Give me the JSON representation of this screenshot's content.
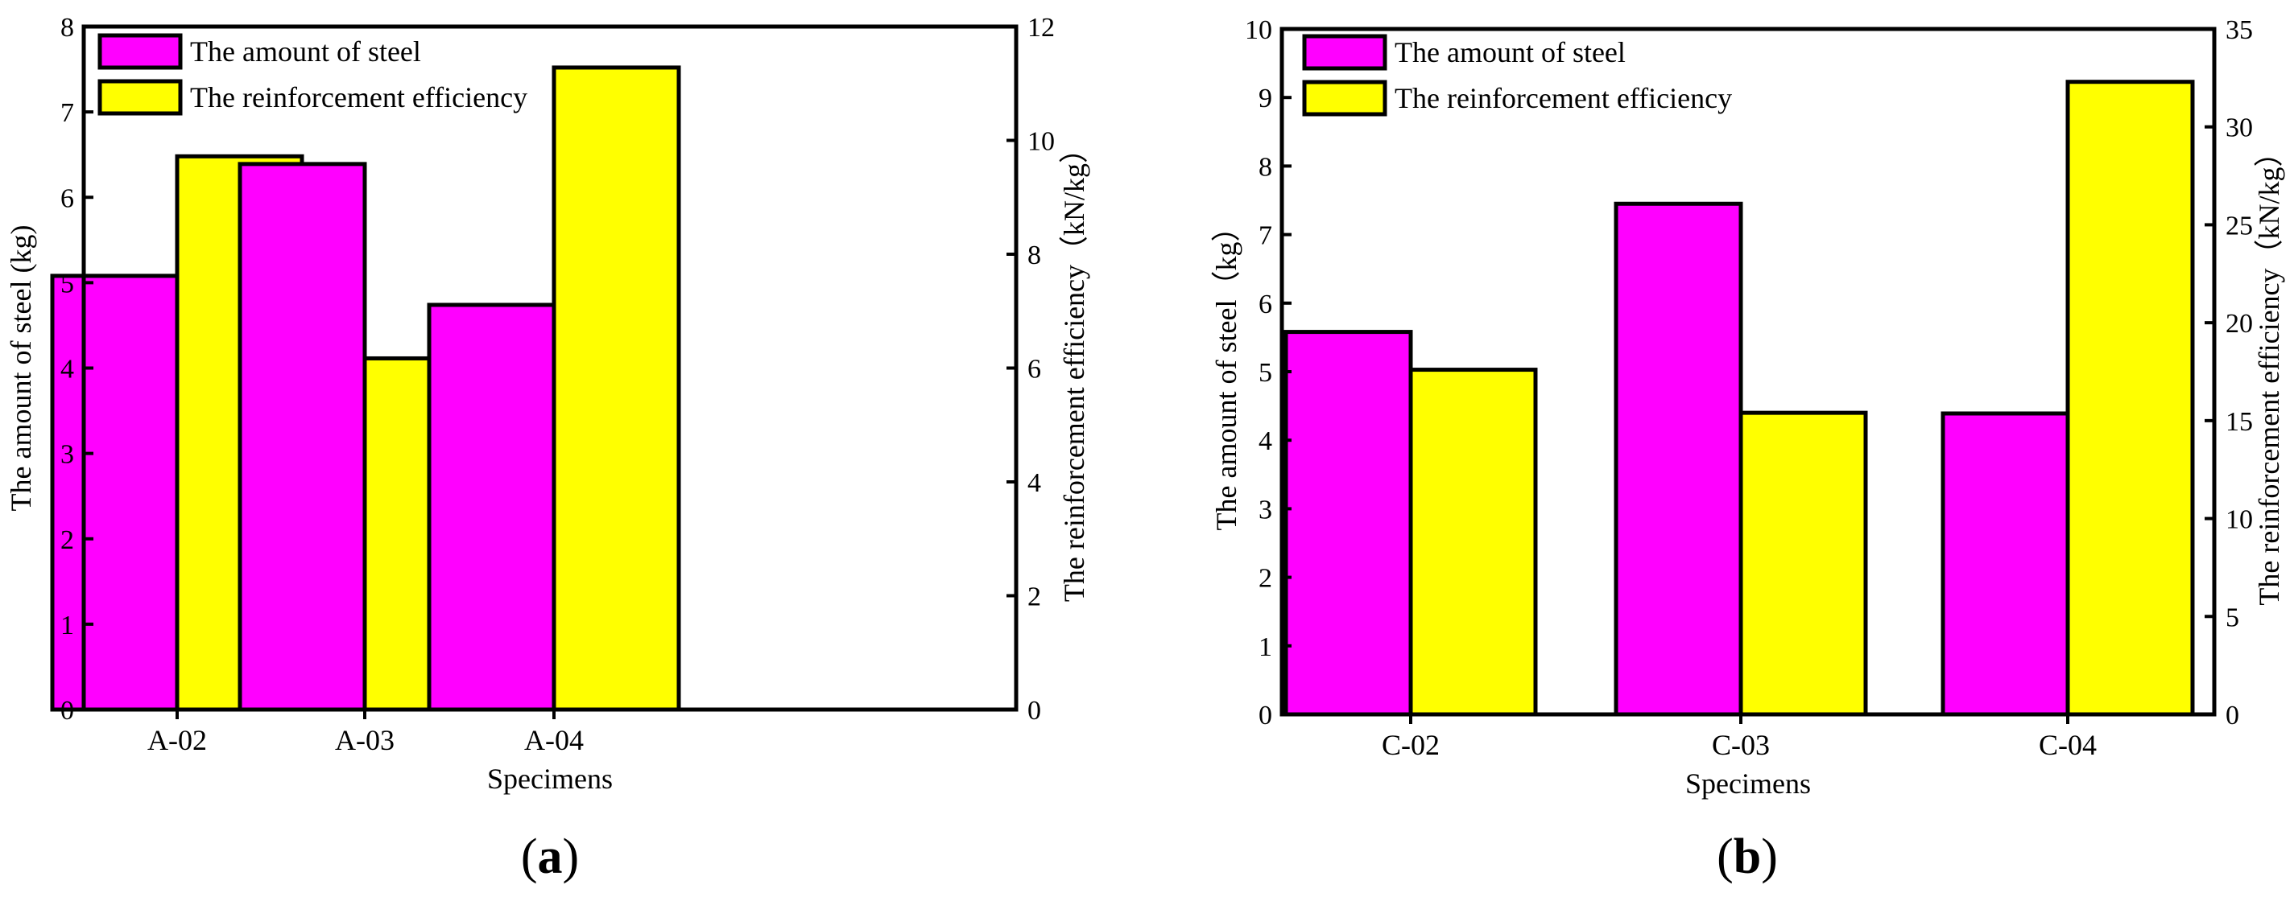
{
  "colors": {
    "steel": "#ff00ff",
    "efficiency": "#ffff00",
    "stroke": "#000000"
  },
  "chart_data": [
    {
      "type": "bar",
      "panel_label": {
        "open": "(",
        "letter": "a",
        "close": ")"
      },
      "categories": [
        "A-02",
        "A-03",
        "A-04"
      ],
      "xlabel": "Specimens",
      "ylabel_left": "The amount of steel (kg)",
      "ylabel_right": "The reinforcement efficiency（kN/kg）",
      "ylim_left": [
        0,
        8
      ],
      "ylim_right": [
        0,
        12
      ],
      "yticks_left": [
        "0",
        "1",
        "2",
        "3",
        "4",
        "5",
        "6",
        "7",
        "8"
      ],
      "yticks_right": [
        "0",
        "2",
        "4",
        "6",
        "8",
        "10",
        "12"
      ],
      "legend_position": "top-left",
      "series": [
        {
          "name": "The amount of steel",
          "axis": "left",
          "color_key": "steel",
          "values": [
            5.08,
            6.39,
            4.74
          ]
        },
        {
          "name": "The reinforcement efficiency",
          "axis": "right",
          "color_key": "efficiency",
          "values": [
            9.72,
            6.17,
            11.28
          ]
        }
      ]
    },
    {
      "type": "bar",
      "panel_label": {
        "open": "(",
        "letter": "b",
        "close": ")"
      },
      "categories": [
        "C-02",
        "C-03",
        "C-04"
      ],
      "xlabel": "Specimens",
      "ylabel_left": "The amount of steel（kg）",
      "ylabel_right": "The reinforcement efficiency（kN/kg）",
      "ylim_left": [
        0,
        10
      ],
      "ylim_right": [
        0,
        35
      ],
      "yticks_left": [
        "0",
        "1",
        "2",
        "3",
        "4",
        "5",
        "6",
        "7",
        "8",
        "9",
        "10"
      ],
      "yticks_right": [
        "0",
        "5",
        "10",
        "15",
        "20",
        "25",
        "30",
        "35"
      ],
      "legend_position": "top-left",
      "series": [
        {
          "name": "The amount of steel",
          "axis": "left",
          "color_key": "steel",
          "values": [
            5.58,
            7.45,
            4.39
          ]
        },
        {
          "name": "The reinforcement efficiency",
          "axis": "right",
          "color_key": "efficiency",
          "values": [
            17.6,
            15.4,
            32.3
          ]
        }
      ]
    }
  ]
}
